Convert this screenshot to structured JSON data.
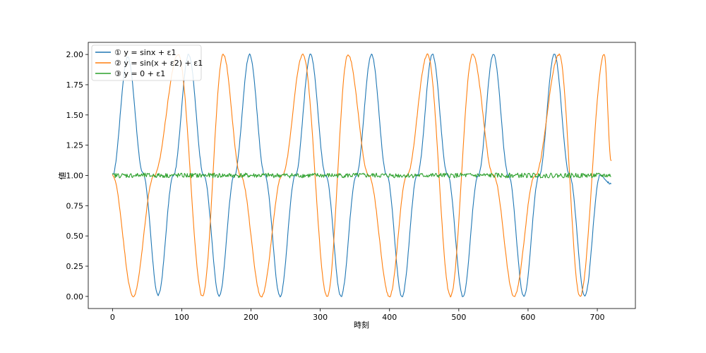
{
  "chart_data": {
    "type": "line",
    "title": "",
    "xlabel": "時刻",
    "ylabel": "値",
    "xlim": [
      -35,
      755
    ],
    "ylim": [
      -0.1,
      2.1
    ],
    "xticks": [
      0,
      100,
      200,
      300,
      400,
      500,
      600,
      700
    ],
    "yticks": [
      0.0,
      0.25,
      0.5,
      0.75,
      1.0,
      1.25,
      1.5,
      1.75,
      2.0
    ],
    "ytick_labels": [
      "0.00",
      "0.25",
      "0.50",
      "0.75",
      "1.00",
      "1.25",
      "1.50",
      "1.75",
      "2.00"
    ],
    "grid": false,
    "legend_position": "upper-left",
    "series": [
      {
        "name": "① y = sinx + ε1",
        "color": "#1f77b4",
        "x": [
          0,
          22,
          44,
          66,
          88,
          110,
          132,
          154,
          176,
          198,
          220,
          242,
          264,
          286,
          308,
          330,
          352,
          374,
          396,
          418,
          440,
          462,
          484,
          506,
          528,
          550,
          572,
          594,
          616,
          638,
          660,
          682,
          704,
          720
        ],
        "y": [
          1.0,
          1.98,
          1.02,
          0.01,
          1.0,
          2.0,
          1.0,
          0.0,
          1.0,
          2.0,
          1.0,
          0.0,
          1.0,
          2.0,
          1.0,
          0.0,
          1.0,
          2.0,
          1.0,
          0.0,
          1.0,
          2.0,
          1.0,
          0.0,
          1.0,
          2.0,
          1.0,
          0.0,
          1.0,
          2.0,
          1.0,
          0.0,
          1.0,
          0.93
        ]
      },
      {
        "name": "② y = sin(x + ε2) + ε1",
        "color": "#ff7f0e",
        "x": [
          0,
          30,
          60,
          95,
          130,
          160,
          185,
          215,
          245,
          275,
          310,
          340,
          370,
          400,
          425,
          455,
          488,
          520,
          550,
          580,
          610,
          645,
          675,
          710,
          720
        ],
        "y": [
          1.0,
          0.0,
          1.0,
          2.0,
          0.0,
          2.0,
          1.0,
          0.0,
          1.0,
          2.0,
          0.0,
          2.0,
          1.0,
          0.0,
          1.0,
          2.0,
          0.0,
          2.0,
          1.0,
          0.0,
          1.0,
          2.0,
          0.0,
          2.0,
          1.12
        ]
      },
      {
        "name": "③ y = 0 + ε1",
        "color": "#2ca02c",
        "x": [
          0,
          720
        ],
        "y": [
          1.0,
          1.0
        ],
        "noise_amplitude": 0.02
      }
    ]
  }
}
